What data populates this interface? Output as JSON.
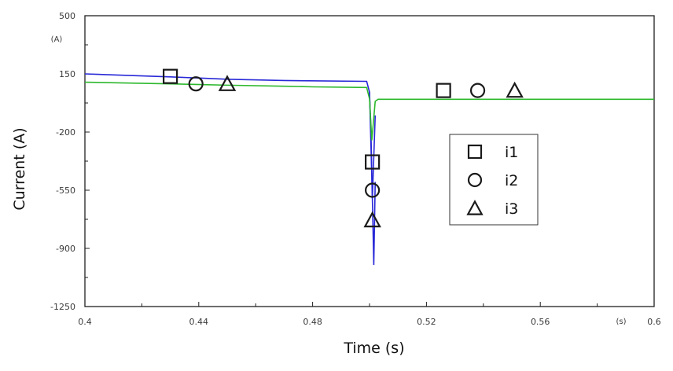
{
  "chart_data": {
    "type": "line",
    "xlabel": "Time (s)",
    "ylabel": "Current (A)",
    "x_unit": "(s)",
    "y_unit": "(A)",
    "xlim": [
      0.4,
      0.6
    ],
    "ylim": [
      -1250,
      500
    ],
    "x_ticks": [
      0.4,
      0.44,
      0.48,
      0.52,
      0.56,
      0.6
    ],
    "x_tick_labels": [
      "0.4",
      "0.44",
      "0.48",
      "0.52",
      "0.56",
      "0.6"
    ],
    "y_ticks": [
      500,
      150,
      -200,
      -550,
      -900,
      -1250
    ],
    "y_tick_labels": [
      "500",
      "150",
      "-200",
      "-550",
      "-900",
      "-1250"
    ],
    "grid": false,
    "legend_position": "center-right",
    "series": [
      {
        "name": "i1",
        "color": "#2828d8",
        "marker": "square",
        "x": [
          0.4,
          0.43,
          0.45,
          0.47,
          0.499,
          0.5,
          0.5005,
          0.501,
          0.5015,
          0.502
        ],
        "y": [
          150,
          132,
          118,
          110,
          105,
          40,
          -200,
          -600,
          -1000,
          -500
        ]
      },
      {
        "name": "i2",
        "color": "#2828d8",
        "marker": "circle",
        "x": [
          0.5,
          0.501,
          0.502
        ],
        "y": [
          40,
          -600,
          -100
        ]
      },
      {
        "name": "i3",
        "color": "#2db82d",
        "marker": "triangle",
        "x": [
          0.4,
          0.43,
          0.45,
          0.47,
          0.48,
          0.499,
          0.5,
          0.5008,
          0.502,
          0.503,
          0.6
        ],
        "y": [
          100,
          90,
          82,
          76,
          72,
          68,
          0,
          -250,
          -15,
          -3,
          -3
        ]
      }
    ],
    "markers": [
      {
        "series": "i1",
        "shape": "square",
        "x": 0.43,
        "y": 135
      },
      {
        "series": "i2",
        "shape": "circle",
        "x": 0.439,
        "y": 90
      },
      {
        "series": "i3",
        "shape": "triangle",
        "x": 0.45,
        "y": 90
      },
      {
        "series": "i1",
        "shape": "square",
        "x": 0.501,
        "y": -380
      },
      {
        "series": "i2",
        "shape": "circle",
        "x": 0.501,
        "y": -550
      },
      {
        "series": "i3",
        "shape": "triangle",
        "x": 0.501,
        "y": -730
      },
      {
        "series": "i1",
        "shape": "square",
        "x": 0.526,
        "y": 50
      },
      {
        "series": "i2",
        "shape": "circle",
        "x": 0.538,
        "y": 50
      },
      {
        "series": "i3",
        "shape": "triangle",
        "x": 0.551,
        "y": 50
      }
    ],
    "legend": [
      {
        "label": "i1",
        "shape": "square"
      },
      {
        "label": "i2",
        "shape": "circle"
      },
      {
        "label": "i3",
        "shape": "triangle"
      }
    ]
  }
}
